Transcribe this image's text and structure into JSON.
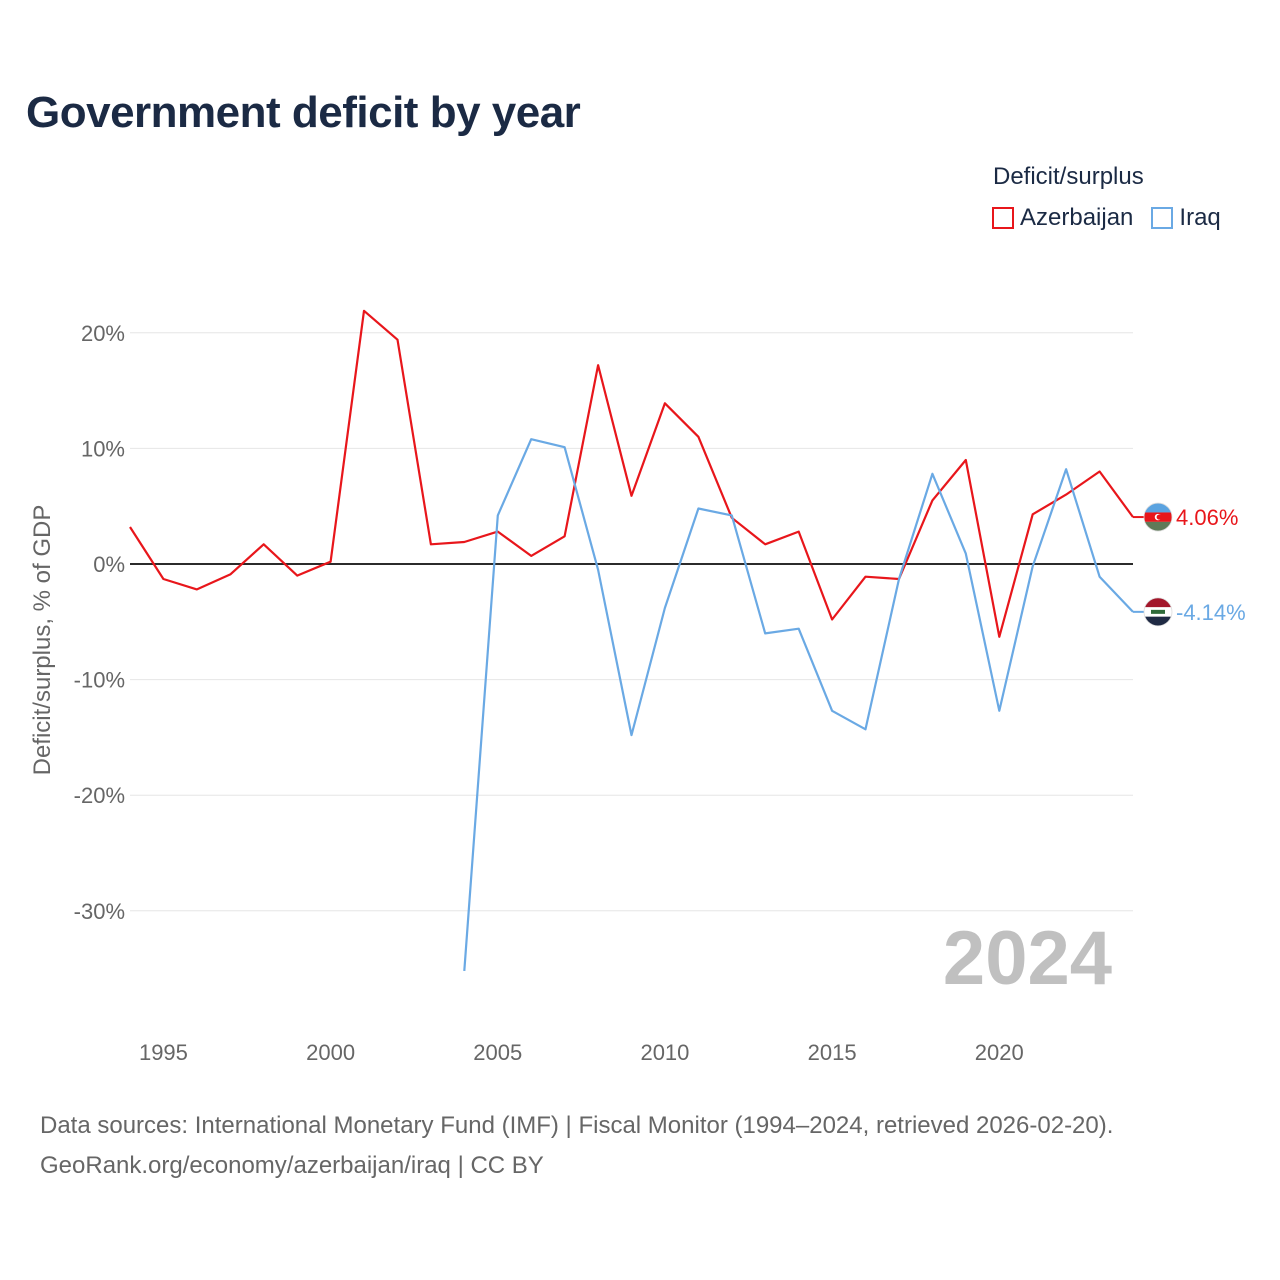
{
  "title": "Government deficit by year",
  "legend": {
    "title": "Deficit/surplus",
    "items": [
      {
        "label": "Azerbaijan",
        "color": "#e8161b"
      },
      {
        "label": "Iraq",
        "color": "#6aa9e4"
      }
    ]
  },
  "footer": {
    "line1": "Data sources: International Monetary Fund (IMF) | Fiscal Monitor (1994–2024, retrieved 2026-02-20).",
    "line2": "GeoRank.org/economy/azerbaijan/iraq | CC BY"
  },
  "chart_data": {
    "type": "line",
    "title": "Government deficit by year",
    "ylabel": "Deficit/surplus, % of GDP",
    "xlabel": "",
    "xlim": [
      1994,
      2024
    ],
    "ylim": [
      -35,
      22
    ],
    "x_ticks": [
      1995,
      2000,
      2005,
      2010,
      2015,
      2020
    ],
    "y_ticks": [
      20,
      10,
      0,
      -10,
      -20,
      -30
    ],
    "y_tick_labels": [
      "20%",
      "10%",
      "0%",
      "-10%",
      "-20%",
      "-30%"
    ],
    "watermark_year": "2024",
    "series": [
      {
        "name": "Azerbaijan",
        "color": "#e8161b",
        "end_label": "4.06%",
        "flag_icon": "azerbaijan-flag-icon",
        "points": [
          [
            1994,
            3.2
          ],
          [
            1995,
            -1.3
          ],
          [
            1996,
            -2.2
          ],
          [
            1997,
            -0.9
          ],
          [
            1998,
            1.7
          ],
          [
            1999,
            -1.0
          ],
          [
            2000,
            0.2
          ],
          [
            2001,
            21.9
          ],
          [
            2002,
            19.4
          ],
          [
            2003,
            1.7
          ],
          [
            2004,
            1.9
          ],
          [
            2005,
            2.8
          ],
          [
            2006,
            0.7
          ],
          [
            2007,
            2.4
          ],
          [
            2008,
            17.2
          ],
          [
            2009,
            5.9
          ],
          [
            2010,
            13.9
          ],
          [
            2011,
            11.0
          ],
          [
            2012,
            4.0
          ],
          [
            2013,
            1.7
          ],
          [
            2014,
            2.8
          ],
          [
            2015,
            -4.8
          ],
          [
            2016,
            -1.1
          ],
          [
            2017,
            -1.3
          ],
          [
            2018,
            5.5
          ],
          [
            2019,
            9.0
          ],
          [
            2020,
            -6.3
          ],
          [
            2021,
            4.3
          ],
          [
            2022,
            6.0
          ],
          [
            2023,
            8.0
          ],
          [
            2024,
            4.06
          ]
        ]
      },
      {
        "name": "Iraq",
        "color": "#6aa9e4",
        "end_label": "-4.14%",
        "flag_icon": "iraq-flag-icon",
        "points": [
          [
            2004,
            -35.2
          ],
          [
            2005,
            4.2
          ],
          [
            2006,
            10.8
          ],
          [
            2007,
            10.1
          ],
          [
            2008,
            -0.5
          ],
          [
            2009,
            -14.8
          ],
          [
            2010,
            -3.8
          ],
          [
            2011,
            4.8
          ],
          [
            2012,
            4.2
          ],
          [
            2013,
            -6.0
          ],
          [
            2014,
            -5.6
          ],
          [
            2015,
            -12.7
          ],
          [
            2016,
            -14.3
          ],
          [
            2017,
            -1.3
          ],
          [
            2018,
            7.8
          ],
          [
            2019,
            0.9
          ],
          [
            2020,
            -12.7
          ],
          [
            2021,
            -0.2
          ],
          [
            2022,
            8.2
          ],
          [
            2023,
            -1.1
          ],
          [
            2024,
            -4.14
          ]
        ]
      }
    ]
  }
}
